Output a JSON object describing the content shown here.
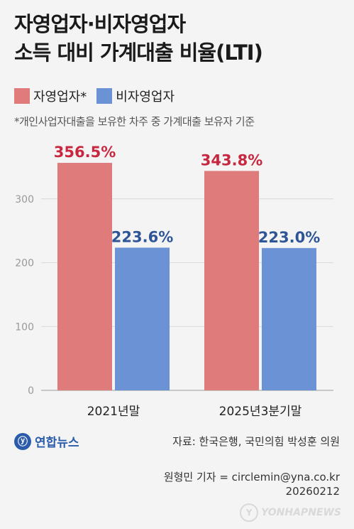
{
  "header": {
    "title_line1": "자영업자·비자영업자",
    "title_line2": "소득 대비 가계대출 비율(LTI)"
  },
  "note": "*개인사업자대출을 보유한 차주 중 가계대출 보유자 기준",
  "colors": {
    "self_employed": "#e07b7b",
    "non_self_employed": "#6b92d4",
    "label_self_employed": "#c8283f",
    "label_non_self_employed": "#2e5597"
  },
  "chart_data": {
    "type": "bar",
    "categories": [
      "2021년말",
      "2025년3분기말"
    ],
    "series": [
      {
        "name": "자영업자*",
        "values": [
          356.5,
          343.8
        ],
        "labels": [
          "356.5%",
          "343.8%"
        ]
      },
      {
        "name": "비자영업자",
        "values": [
          223.6,
          223.0
        ],
        "labels": [
          "223.6%",
          "223.0%"
        ]
      }
    ],
    "yticks": [
      0,
      100,
      200,
      300
    ],
    "ylim": [
      0,
      400
    ],
    "grid": true,
    "legend": "top-left"
  },
  "footer": {
    "logo_text": "연합뉴스",
    "source": "자료: 한국은행, 국민의힘 박성훈 의원",
    "reporter": "원형민 기자 = circlemin@yna.co.kr",
    "date": "20260212",
    "watermark": "YONHAPNEWS"
  }
}
